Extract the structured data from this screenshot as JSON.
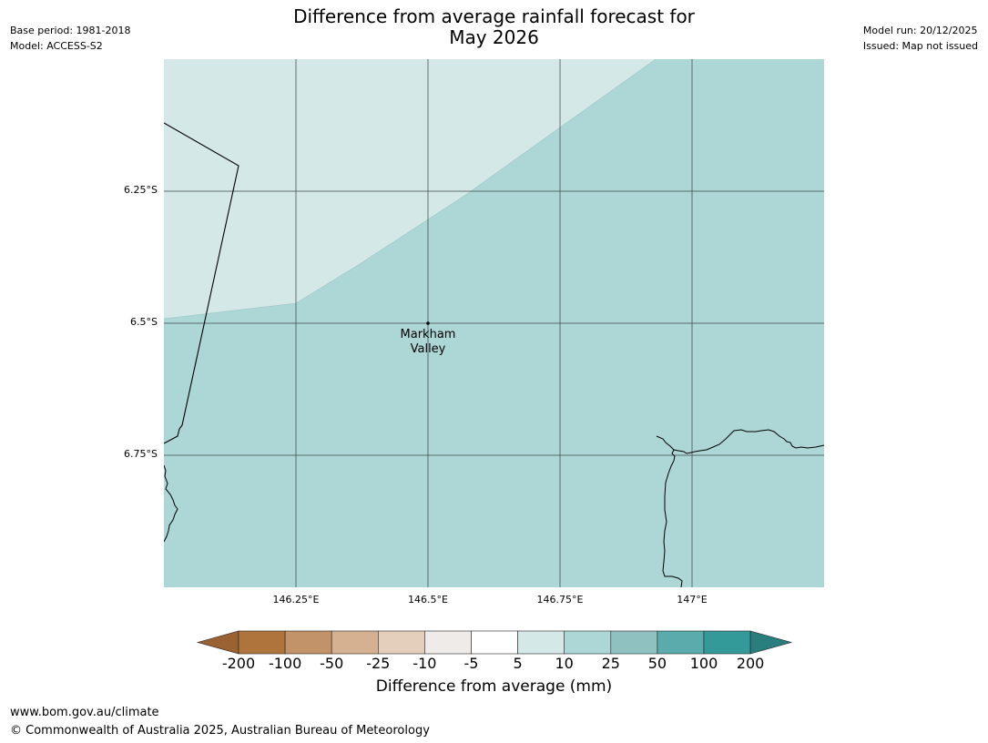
{
  "title_line1": "Difference from average rainfall forecast for",
  "title_line2": "May 2026",
  "meta_left": {
    "base_period": "Base period: 1981-2018",
    "model": "Model: ACCESS-S2"
  },
  "meta_right": {
    "model_run": "Model run: 20/12/2025",
    "issued": "Issued: Map not issued"
  },
  "map": {
    "lat_ticks": [
      "6.25°S",
      "6.5°S",
      "6.75°S"
    ],
    "lon_ticks": [
      "146.25°E",
      "146.5°E",
      "146.75°E",
      "147°E"
    ],
    "place": {
      "name_line1": "Markham",
      "name_line2": "Valley"
    },
    "region_colors": {
      "light": "#d5e8e8",
      "medium": "#add6d6"
    },
    "region_categories": [
      "5 to 10",
      "10 to 25"
    ]
  },
  "colorbar": {
    "ticks": [
      "-200",
      "-100",
      "-50",
      "-25",
      "-10",
      "-5",
      "5",
      "10",
      "25",
      "50",
      "100",
      "200"
    ],
    "colors": [
      "#9a6133",
      "#ae743b",
      "#c29269",
      "#d5b192",
      "#e4cfbd",
      "#eeebe8",
      "#ffffff",
      "#d5e8e8",
      "#add6d6",
      "#8fc1c1",
      "#5aabab",
      "#339999",
      "#2b7e7e"
    ],
    "label": "Difference from average (mm)"
  },
  "footer": {
    "url": "www.bom.gov.au/climate",
    "copyright": "© Commonwealth of Australia 2025, Australian Bureau of Meteorology"
  }
}
